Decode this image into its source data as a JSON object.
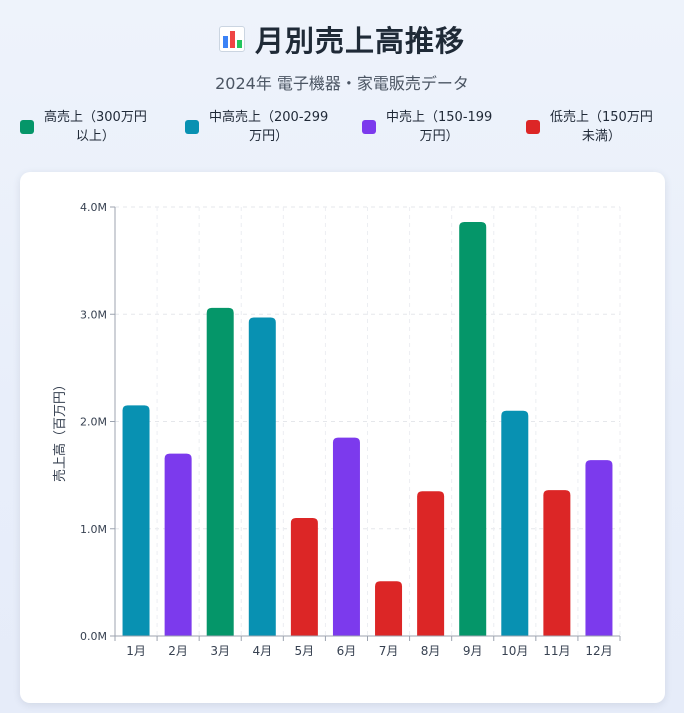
{
  "header": {
    "title": "月別売上高推移",
    "subtitle": "2024年 電子機器・家電販売データ"
  },
  "legend": [
    {
      "label_line1": "高売上（300万円",
      "label_line2": "以上）",
      "color": "#059669"
    },
    {
      "label_line1": "中高売上（200-299",
      "label_line2": "万円）",
      "color": "#0891b2"
    },
    {
      "label_line1": "中売上（150-199",
      "label_line2": "万円）",
      "color": "#7c3aed"
    },
    {
      "label_line1": "低売上（150万円",
      "label_line2": "未満）",
      "color": "#dc2626"
    }
  ],
  "chart_data": {
    "type": "bar",
    "title": "月別売上高推移",
    "subtitle": "2024年 電子機器・家電販売データ",
    "ylabel": "売上高（百万円）",
    "xlabel": "",
    "categories": [
      "1月",
      "2月",
      "3月",
      "4月",
      "5月",
      "6月",
      "7月",
      "8月",
      "9月",
      "10月",
      "11月",
      "12月"
    ],
    "values": [
      2150000,
      1700000,
      3060000,
      2970000,
      1100000,
      1850000,
      510000,
      1350000,
      3860000,
      2100000,
      1360000,
      1640000
    ],
    "bar_colors": [
      "#0891b2",
      "#7c3aed",
      "#059669",
      "#0891b2",
      "#dc2626",
      "#7c3aed",
      "#dc2626",
      "#dc2626",
      "#059669",
      "#0891b2",
      "#dc2626",
      "#7c3aed"
    ],
    "ylim": [
      0,
      4000000
    ],
    "yticks": [
      0,
      1000000,
      2000000,
      3000000,
      4000000
    ],
    "ytick_labels": [
      "0.0M",
      "1.0M",
      "2.0M",
      "3.0M",
      "4.0M"
    ],
    "grid": true,
    "legend_position": "top"
  }
}
